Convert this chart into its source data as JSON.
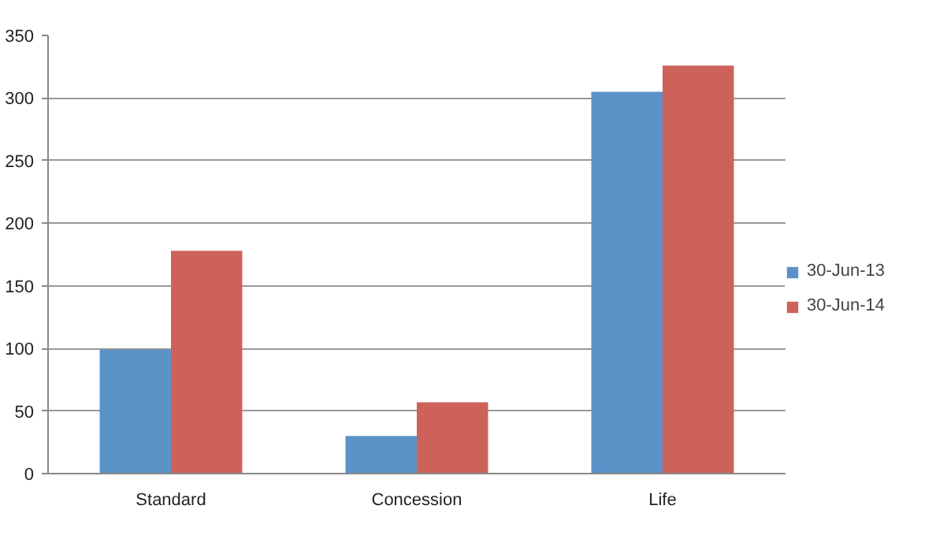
{
  "chart_data": {
    "type": "bar",
    "categories": [
      "Standard",
      "Concession",
      "Life"
    ],
    "series": [
      {
        "name": "30-Jun-13",
        "color": "#5b93c8",
        "values": [
          99,
          30,
          305
        ]
      },
      {
        "name": "30-Jun-14",
        "color": "#cd625b",
        "values": [
          178,
          57,
          326
        ]
      }
    ],
    "ylim": [
      0,
      350
    ],
    "yticks": [
      0,
      50,
      100,
      150,
      200,
      250,
      300,
      350
    ],
    "grid": "y",
    "legend": "right"
  }
}
